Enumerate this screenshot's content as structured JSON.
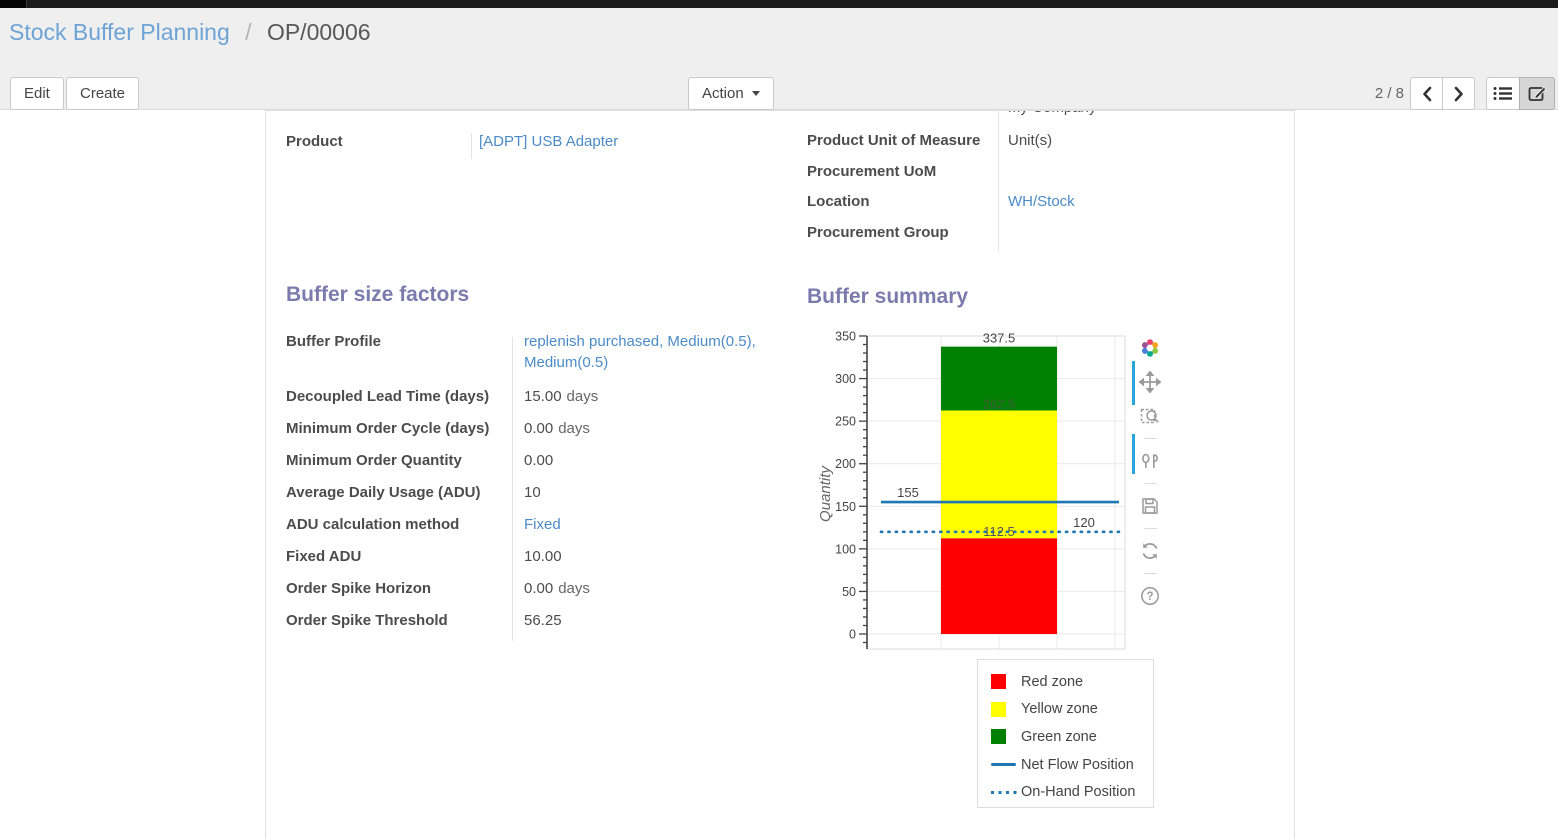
{
  "breadcrumb": {
    "parent": "Stock Buffer Planning",
    "separator": "/",
    "current": "OP/00006"
  },
  "toolbar": {
    "edit": "Edit",
    "create": "Create",
    "action": "Action",
    "pager": "2 / 8"
  },
  "form": {
    "clipped_top_value": "My Company",
    "product_row": {
      "label": "Product",
      "value": "[ADPT] USB Adapter",
      "is_link": true
    },
    "info_rows": [
      {
        "label": "Product Unit of Measure",
        "value": "Unit(s)",
        "is_link": false
      },
      {
        "label": "Procurement UoM",
        "value": "",
        "is_link": false
      },
      {
        "label": "Location",
        "value": "WH/Stock",
        "is_link": true
      },
      {
        "label": "Procurement Group",
        "value": "",
        "is_link": false
      }
    ]
  },
  "buffer_factors": {
    "title": "Buffer size factors",
    "rows": [
      {
        "label": "Buffer Profile",
        "value": "replenish purchased, Medium(0.5), Medium(0.5)",
        "is_link": true
      },
      {
        "label": "Decoupled Lead Time (days)",
        "value": "15.00",
        "suffix": "days"
      },
      {
        "label": "Minimum Order Cycle (days)",
        "value": "0.00",
        "suffix": "days"
      },
      {
        "label": "Minimum Order Quantity",
        "value": "0.00"
      },
      {
        "label": "Average Daily Usage (ADU)",
        "value": "10"
      },
      {
        "label": "ADU calculation method",
        "value": "Fixed",
        "is_link": true
      },
      {
        "label": "Fixed ADU",
        "value": "10.00"
      },
      {
        "label": "Order Spike Horizon",
        "value": "0.00",
        "suffix": "days"
      },
      {
        "label": "Order Spike Threshold",
        "value": "56.25"
      }
    ]
  },
  "buffer_summary": {
    "title": "Buffer summary"
  },
  "chart_data": {
    "type": "bar",
    "title": "Buffer summary",
    "ylabel": "Quantity",
    "ylim": [
      0,
      350
    ],
    "ytick_step": 50,
    "ytick_minor_step": 10,
    "grid": true,
    "zones": [
      {
        "name": "Red zone",
        "from": 0,
        "to": 112.5,
        "color": "#ff0000"
      },
      {
        "name": "Yellow zone",
        "from": 112.5,
        "to": 262.5,
        "color": "#ffff00"
      },
      {
        "name": "Green zone",
        "from": 262.5,
        "to": 337.5,
        "color": "#008000"
      }
    ],
    "lines": [
      {
        "name": "Net Flow Position",
        "value": 155,
        "style": "solid",
        "color": "#1f77b4"
      },
      {
        "name": "On-Hand Position",
        "value": 120,
        "style": "dotted",
        "color": "#1f77b4"
      }
    ],
    "value_labels": [
      {
        "text": "337.5",
        "at": "green-top"
      },
      {
        "text": "262.5",
        "at": "green-yellow-boundary"
      },
      {
        "text": "112.5",
        "at": "yellow-red-boundary"
      },
      {
        "text": "155",
        "at": "net-flow-line"
      },
      {
        "text": "120",
        "at": "on-hand-line"
      }
    ],
    "legend_position": "below-right"
  },
  "legend": {
    "items": [
      {
        "label": "Red zone",
        "swatch": "square",
        "color": "#ff0000"
      },
      {
        "label": "Yellow zone",
        "swatch": "square",
        "color": "#ffff00"
      },
      {
        "label": "Green zone",
        "swatch": "square",
        "color": "#008000"
      },
      {
        "label": "Net Flow Position",
        "swatch": "line",
        "color": "#1f77b4"
      },
      {
        "label": "On-Hand Position",
        "swatch": "dotted-line",
        "color": "#1f77b4"
      }
    ]
  },
  "modebar": {
    "icons": [
      "plotly-logo-icon",
      "pan-icon",
      "box-zoom-icon",
      "compare-hover-icon",
      "save-icon",
      "reset-axes-icon",
      "help-icon"
    ]
  },
  "colors": {
    "accent_link": "#4c8bc8",
    "breadcrumb_link": "#6ea3d5",
    "heading": "#7c7bad",
    "plot_blue": "#1f77b4",
    "red_zone": "#ff0000",
    "yellow_zone": "#ffff00",
    "green_zone": "#008000",
    "modebar_strip": "#29a4dd"
  }
}
